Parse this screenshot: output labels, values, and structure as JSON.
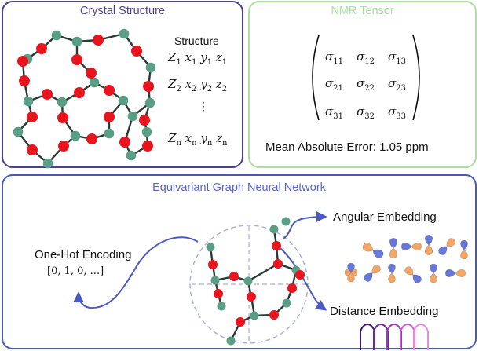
{
  "crystal": {
    "title": "Crystal Structure",
    "structure_label": "Structure",
    "rows": [
      {
        "a": "Z",
        "as": "1",
        "b": "x",
        "bs": "1",
        "c": "y",
        "cs": "1",
        "d": "z",
        "ds": "1"
      },
      {
        "a": "Z",
        "as": "2",
        "b": "x",
        "bs": "2",
        "c": "y",
        "cs": "2",
        "d": "z",
        "ds": "2"
      },
      {
        "a": "Z",
        "as": "n",
        "b": "x",
        "bs": "n",
        "c": "y",
        "cs": "n",
        "d": "z",
        "ds": "n"
      }
    ],
    "vdots": "⋮"
  },
  "nmr": {
    "title": "NMR Tensor",
    "symbol": "σ",
    "cells": [
      [
        "11",
        "12",
        "13"
      ],
      [
        "21",
        "22",
        "23"
      ],
      [
        "31",
        "32",
        "33"
      ]
    ],
    "error_label": "Mean Absolute Error: 1.05 ppm"
  },
  "egnn": {
    "title": "Equivariant Graph Neural Network",
    "onehot_label": "One-Hot Encoding",
    "onehot_vector": "[0,  1,  0,  ...]",
    "angular_label": "Angular Embedding",
    "distance_label": "Distance Embedding"
  },
  "colors": {
    "oxygen": "#e8141e",
    "silicon": "#5a9e86",
    "bond": "#2a3a34",
    "arrow": "#4a5ac0",
    "orbital_orange": "#f2a766",
    "orbital_blue": "#6878d8"
  }
}
